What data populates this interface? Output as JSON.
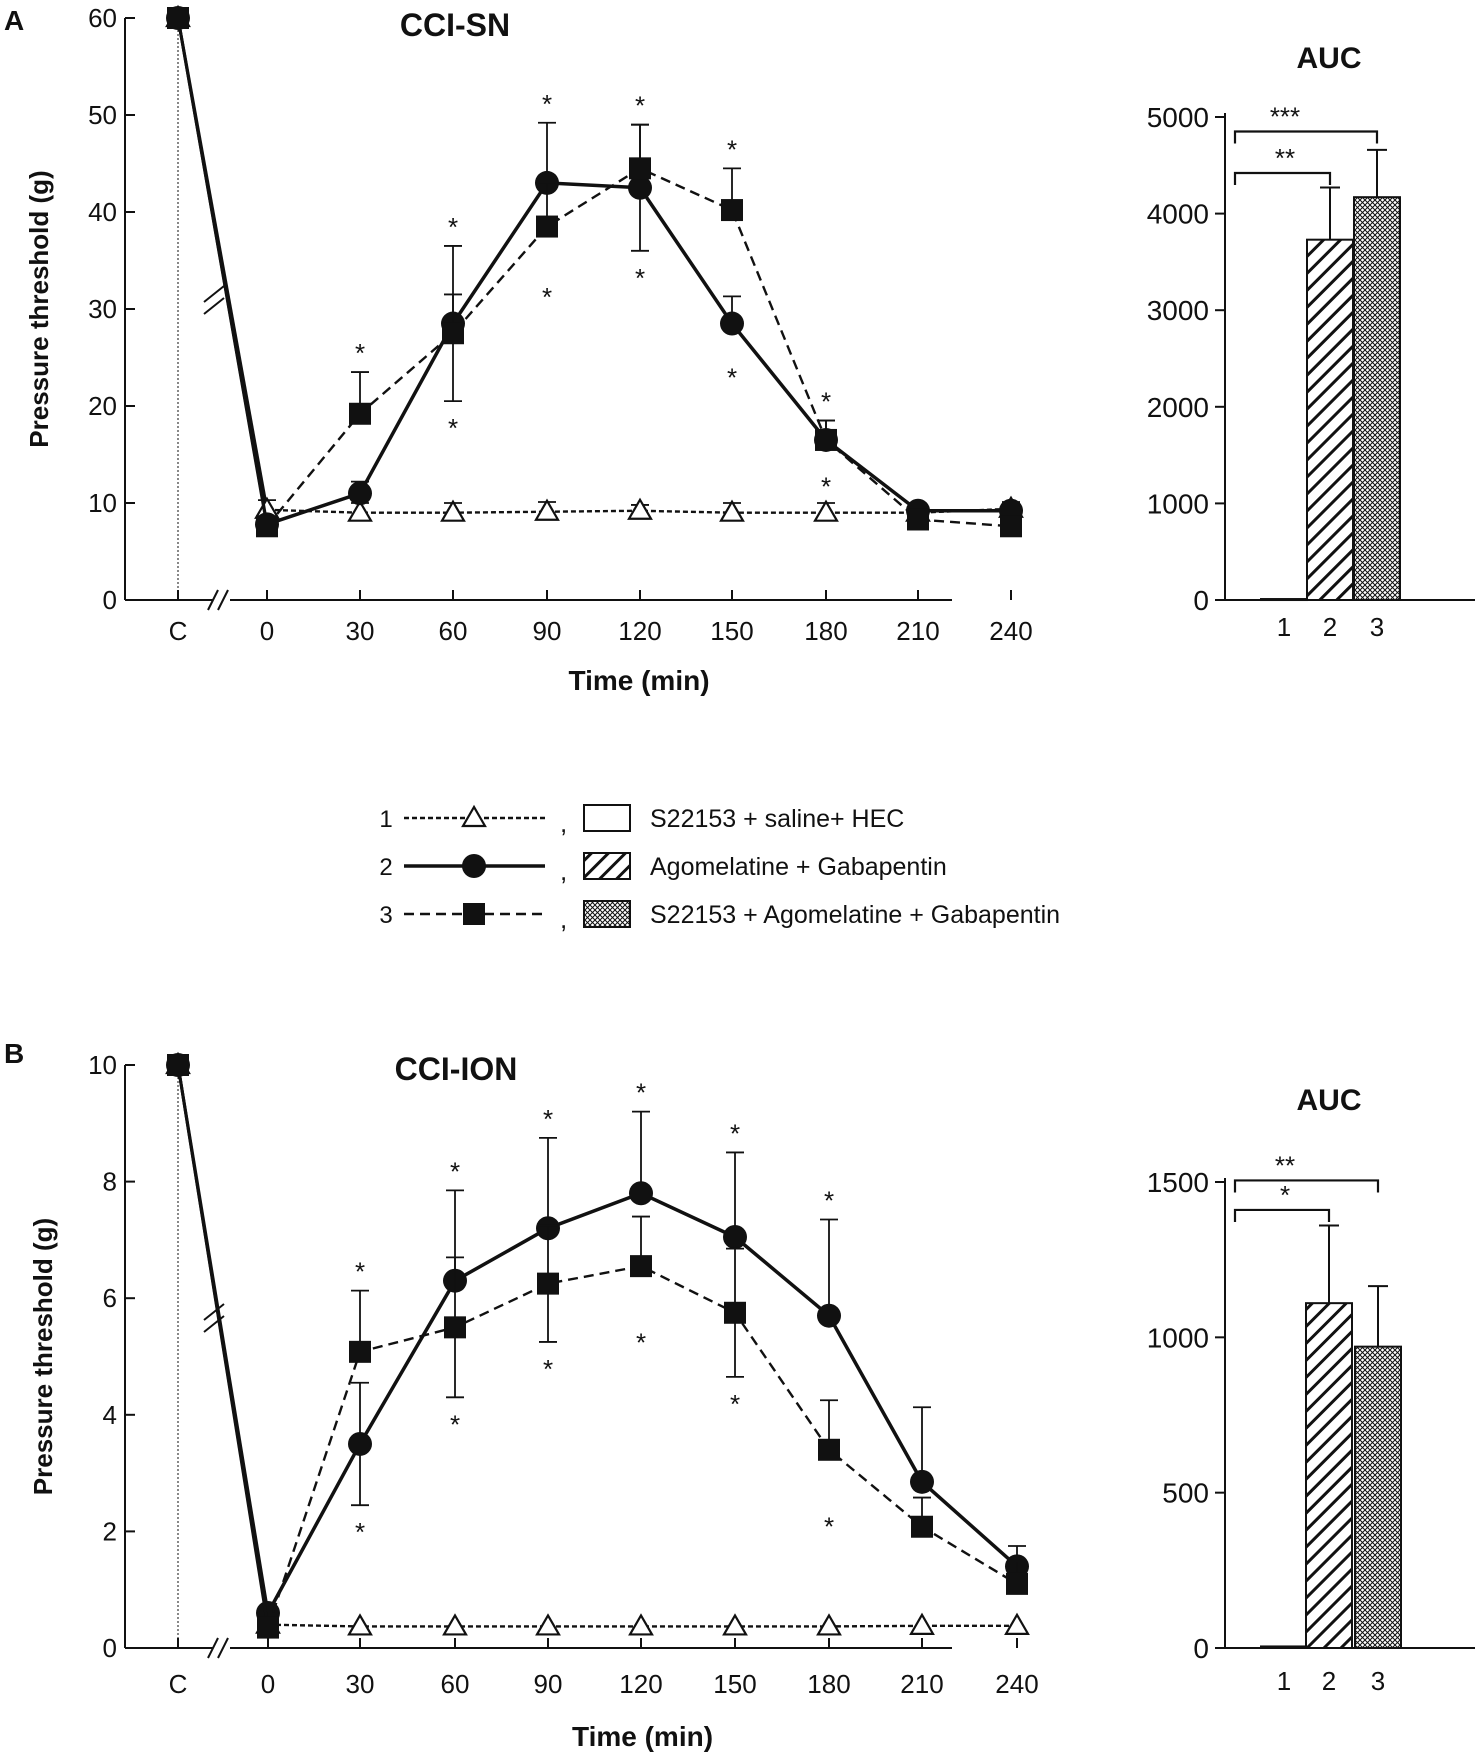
{
  "figure": {
    "page_background": "#ffffff",
    "ink_color": "#111111"
  },
  "legend": {
    "items": [
      {
        "id": "1",
        "number": "1",
        "marker": "open-triangle",
        "line": "dashed-fine",
        "fill": "open",
        "label": "S22153 + saline+ HEC"
      },
      {
        "id": "2",
        "number": "2",
        "marker": "filled-circle",
        "line": "solid",
        "fill": "diagonal-hatch",
        "label": "Agomelatine + Gabapentin"
      },
      {
        "id": "3",
        "number": "3",
        "marker": "filled-square",
        "line": "dashed",
        "fill": "cross-hatch",
        "label": "S22153 + Agomelatine + Gabapentin"
      }
    ],
    "separator": ","
  },
  "chart_data": [
    {
      "panel": "A",
      "title": "CCI-SN",
      "type": "line",
      "xlabel": "Time (min)",
      "ylabel": "Pressure threshold (g)",
      "categories": [
        "C",
        "0",
        "30",
        "60",
        "90",
        "120",
        "150",
        "180",
        "210",
        "240"
      ],
      "ylim": [
        0,
        60
      ],
      "yticks": [
        "0",
        "10",
        "20",
        "30",
        "40",
        "50",
        "60"
      ],
      "series": [
        {
          "id": "1",
          "values": [
            60,
            9.3,
            9.0,
            9.0,
            9.1,
            9.2,
            9.0,
            9.0,
            9.0,
            9.4
          ],
          "err": [
            0,
            1,
            1,
            1,
            1,
            0.6,
            1,
            1,
            0.6,
            0.7
          ]
        },
        {
          "id": "2",
          "values": [
            60,
            7.8,
            11.0,
            28.5,
            43.0,
            42.5,
            28.5,
            16.5,
            9.2,
            9.2
          ],
          "err": [
            0,
            0,
            1.2,
            8,
            6.2,
            6.5,
            2.8,
            2,
            0.6,
            0.6
          ]
        },
        {
          "id": "3",
          "values": [
            60,
            7.6,
            19.2,
            27.5,
            38.5,
            44.5,
            40.2,
            16.5,
            8.3,
            7.6
          ],
          "err": [
            0,
            0,
            4.3,
            4,
            4.5,
            4.5,
            4.3,
            2,
            0.6,
            0.6
          ]
        }
      ],
      "significance": [
        {
          "x": "30",
          "above": "*",
          "below": ""
        },
        {
          "x": "60",
          "above": "*",
          "below": "*"
        },
        {
          "x": "90",
          "above": "*",
          "below": "*"
        },
        {
          "x": "120",
          "above": "*",
          "below": "*"
        },
        {
          "x": "150",
          "above": "*",
          "below": "*"
        },
        {
          "x": "180",
          "above": "*",
          "below": "*"
        }
      ],
      "auc": {
        "title": "AUC",
        "type": "bar",
        "categories": [
          "1",
          "2",
          "3"
        ],
        "values": [
          10,
          3730,
          4170
        ],
        "err": [
          0,
          540,
          490
        ],
        "ylim": [
          0,
          5000
        ],
        "yticks": [
          "0",
          "1000",
          "2000",
          "3000",
          "4000",
          "5000"
        ],
        "brackets": [
          {
            "from": "1",
            "to": "2",
            "label": "**",
            "value": 4420
          },
          {
            "from": "1",
            "to": "3",
            "label": "***",
            "value": 4850
          }
        ]
      }
    },
    {
      "panel": "B",
      "title": "CCI-ION",
      "type": "line",
      "xlabel": "Time (min)",
      "ylabel": "Pressure threshold (g)",
      "categories": [
        "C",
        "0",
        "30",
        "60",
        "90",
        "120",
        "150",
        "180",
        "210",
        "240"
      ],
      "ylim": [
        0,
        10
      ],
      "yticks": [
        "0",
        "2",
        "4",
        "6",
        "8",
        "10"
      ],
      "series": [
        {
          "id": "1",
          "values": [
            10,
            0.4,
            0.37,
            0.37,
            0.37,
            0.37,
            0.37,
            0.37,
            0.38,
            0.38
          ],
          "err": [
            0,
            0,
            0,
            0,
            0,
            0,
            0,
            0,
            0,
            0
          ]
        },
        {
          "id": "2",
          "values": [
            10,
            0.6,
            3.5,
            6.3,
            7.2,
            7.8,
            7.05,
            5.7,
            2.85,
            1.4
          ],
          "err": [
            0,
            0,
            1.05,
            1.55,
            1.55,
            1.4,
            1.45,
            1.65,
            1.28,
            0.35
          ]
        },
        {
          "id": "3",
          "values": [
            10,
            0.35,
            5.08,
            5.5,
            6.25,
            6.55,
            5.75,
            3.4,
            2.08,
            1.1
          ],
          "err": [
            0,
            0,
            1.05,
            1.2,
            1.0,
            0.85,
            1.1,
            0.85,
            0.5,
            0.4
          ]
        }
      ],
      "significance": [
        {
          "x": "30",
          "above": "*",
          "below": "*"
        },
        {
          "x": "60",
          "above": "*",
          "below": "*"
        },
        {
          "x": "90",
          "above": "*",
          "below": "*"
        },
        {
          "x": "120",
          "above": "*",
          "below": "*"
        },
        {
          "x": "150",
          "above": "*",
          "below": "*"
        },
        {
          "x": "180",
          "above": "*",
          "below": "*"
        }
      ],
      "auc": {
        "title": "AUC",
        "type": "bar",
        "categories": [
          "1",
          "2",
          "3"
        ],
        "values": [
          5,
          1110,
          970
        ],
        "err": [
          0,
          250,
          195
        ],
        "ylim": [
          0,
          1500
        ],
        "yticks": [
          "0",
          "500",
          "1000",
          "1500"
        ],
        "brackets": [
          {
            "from": "1",
            "to": "2",
            "label": "*",
            "value": 1410
          },
          {
            "from": "1",
            "to": "3",
            "label": "**",
            "value": 1505
          }
        ]
      }
    }
  ]
}
